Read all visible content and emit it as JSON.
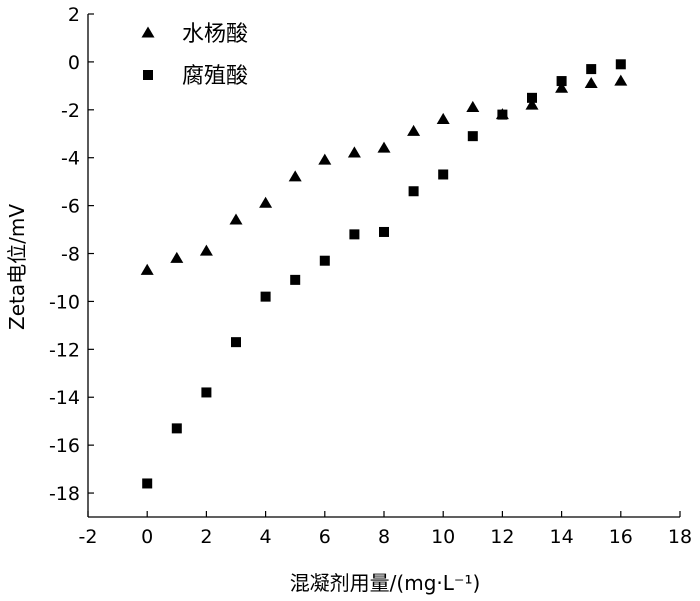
{
  "chart_data": {
    "type": "scatter",
    "xlabel": "混凝剂用量/(mg·L⁻¹)",
    "ylabel": "Zeta电位/mV",
    "xlim": [
      -2,
      18
    ],
    "ylim": [
      -19,
      2
    ],
    "xticks": [
      "-2",
      "0",
      "2",
      "4",
      "6",
      "8",
      "10",
      "12",
      "14",
      "16",
      "18"
    ],
    "yticks": [
      "2",
      "0",
      "-2",
      "-4",
      "-6",
      "-8",
      "-10",
      "-12",
      "-14",
      "-16",
      "-18"
    ],
    "grid": false,
    "legend_position": "top-left",
    "series": [
      {
        "name": "水杨酸",
        "marker": "triangle",
        "color": "#000000",
        "x": [
          0,
          1,
          2,
          3,
          4,
          5,
          6,
          7,
          8,
          9,
          10,
          11,
          12,
          13,
          14,
          15,
          16
        ],
        "y": [
          -8.7,
          -8.2,
          -7.9,
          -6.6,
          -5.9,
          -4.8,
          -4.1,
          -3.8,
          -3.6,
          -2.9,
          -2.4,
          -1.9,
          -2.2,
          -1.8,
          -1.1,
          -0.9,
          -0.8
        ]
      },
      {
        "name": "腐殖酸",
        "marker": "square",
        "color": "#000000",
        "x": [
          0,
          1,
          2,
          3,
          4,
          5,
          6,
          7,
          8,
          9,
          10,
          11,
          12,
          13,
          14,
          15,
          16
        ],
        "y": [
          -17.6,
          -15.3,
          -13.8,
          -11.7,
          -9.8,
          -9.1,
          -8.3,
          -7.2,
          -7.1,
          -5.4,
          -4.7,
          -3.1,
          -2.2,
          -1.5,
          -0.8,
          -0.3,
          -0.1
        ]
      }
    ]
  }
}
